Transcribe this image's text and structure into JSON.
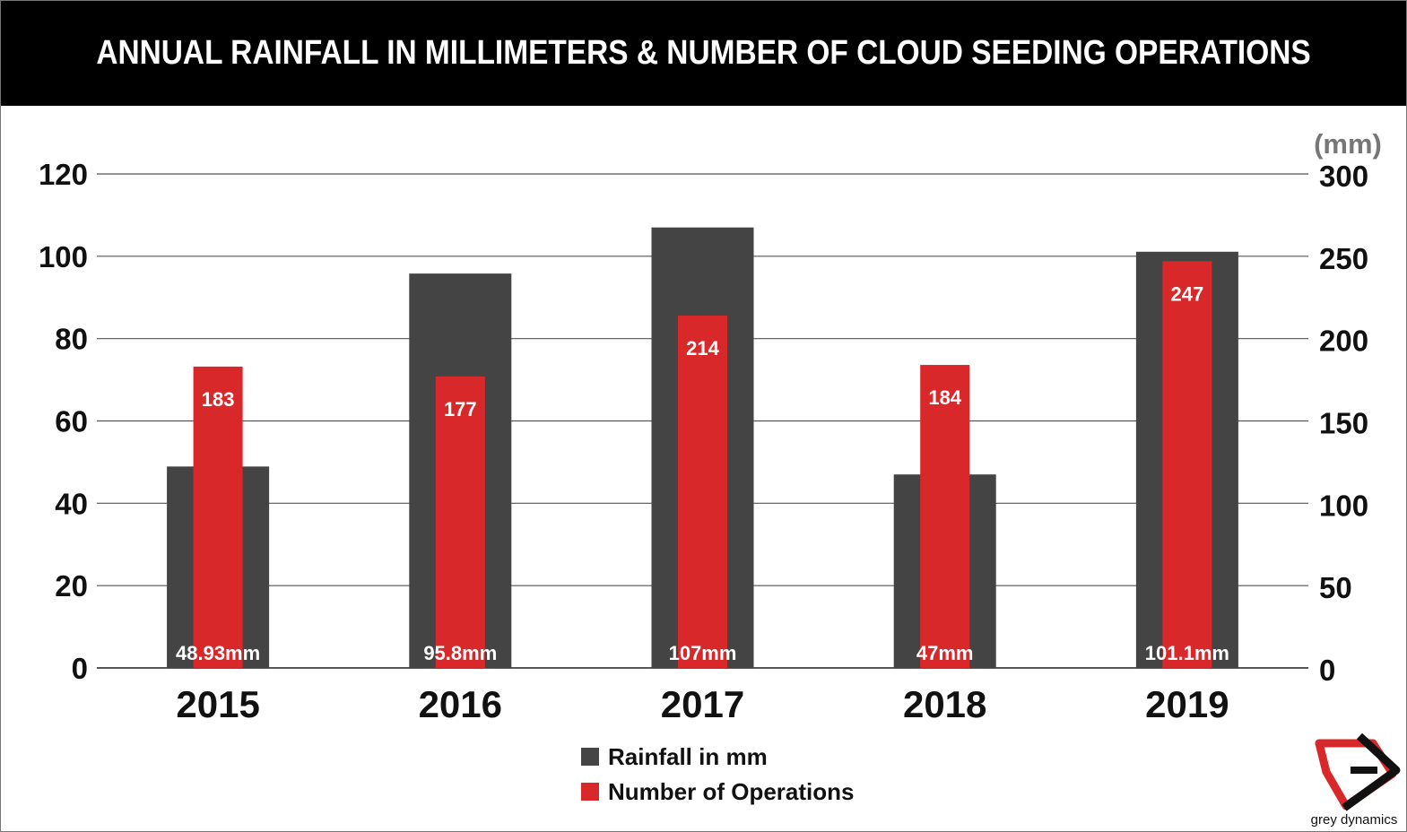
{
  "chart_data": {
    "type": "bar",
    "title": "ANNUAL RAINFALL IN MILLIMETERS & NUMBER OF CLOUD SEEDING OPERATIONS",
    "categories": [
      "2015",
      "2016",
      "2017",
      "2018",
      "2019"
    ],
    "left_axis": {
      "ylim": [
        0,
        120
      ],
      "ticks": [
        "0",
        "20",
        "40",
        "60",
        "80",
        "100",
        "120"
      ]
    },
    "right_axis": {
      "unit_label": "(mm)",
      "ylim": [
        0,
        300
      ],
      "ticks": [
        "0",
        "50",
        "100",
        "150",
        "200",
        "250",
        "300"
      ]
    },
    "series": [
      {
        "name": "Rainfall in mm",
        "axis": "left",
        "color": "#444444",
        "values": [
          48.93,
          95.8,
          107,
          47,
          101.1
        ],
        "labels": [
          "48.93mm",
          "95.8mm",
          "107mm",
          "47mm",
          "101.1mm"
        ]
      },
      {
        "name": "Number of Operations",
        "axis": "right",
        "color": "#d9282a",
        "values": [
          183,
          177,
          214,
          184,
          247
        ],
        "labels": [
          "183",
          "177",
          "214",
          "184",
          "247"
        ]
      }
    ],
    "grid": true,
    "legend_position": "bottom-center"
  },
  "brand": {
    "name": "grey dynamics",
    "logo_icon": "grey-dynamics-logo-icon"
  },
  "colors": {
    "title_bg": "#000000",
    "title_fg": "#ffffff",
    "grid": "#555555"
  }
}
